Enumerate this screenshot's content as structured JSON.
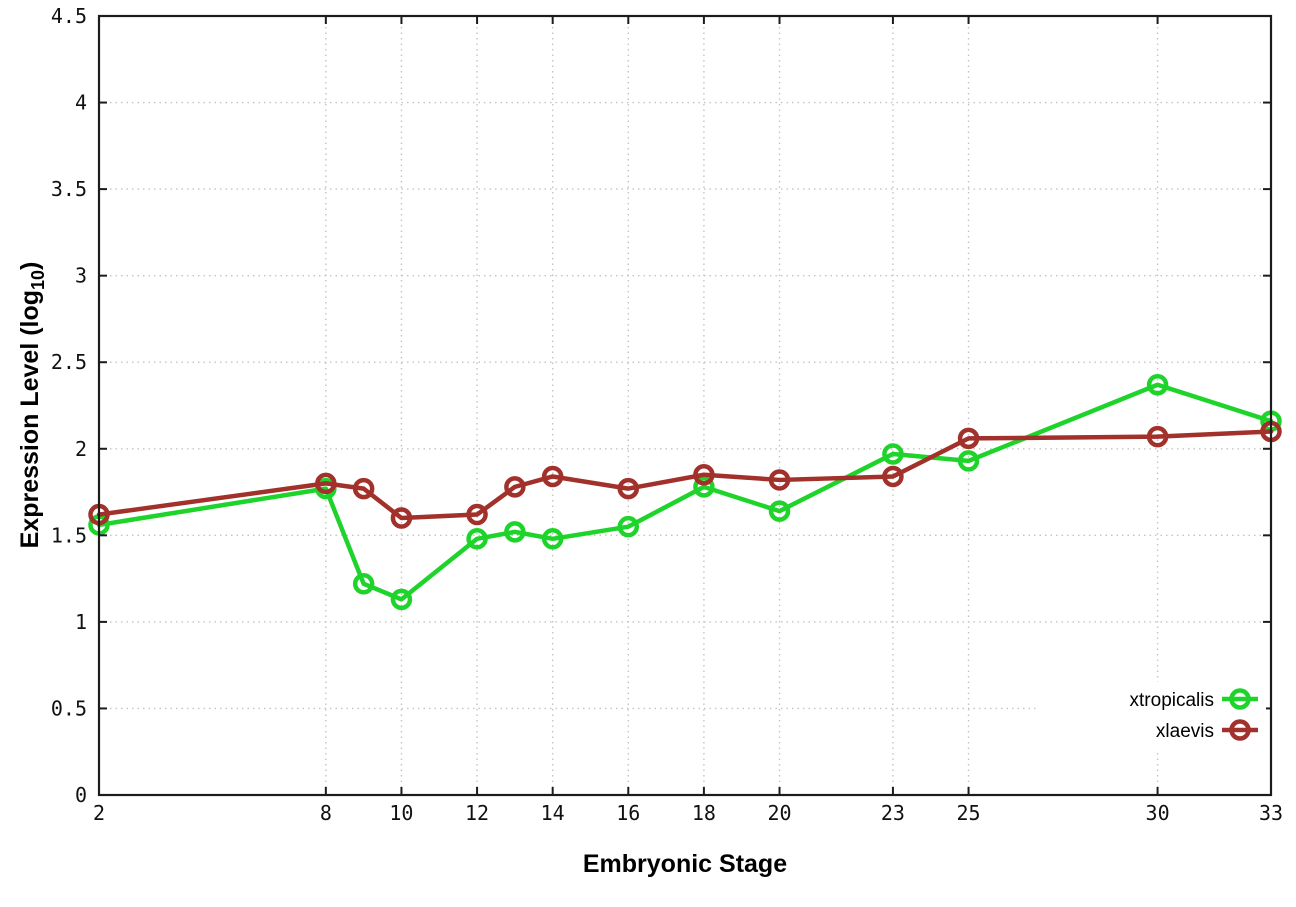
{
  "chart_data": {
    "type": "line",
    "x": [
      2,
      8,
      9,
      10,
      12,
      13,
      14,
      16,
      18,
      20,
      23,
      25,
      30,
      33
    ],
    "series": [
      {
        "name": "xtropicalis",
        "color": "#1ed42b",
        "values": [
          1.56,
          1.77,
          1.22,
          1.13,
          1.48,
          1.52,
          1.48,
          1.55,
          1.78,
          1.64,
          1.97,
          1.93,
          2.37,
          2.16
        ]
      },
      {
        "name": "xlaevis",
        "color": "#a1312a",
        "values": [
          1.62,
          1.8,
          1.77,
          1.6,
          1.62,
          1.78,
          1.84,
          1.77,
          1.85,
          1.82,
          1.84,
          2.06,
          2.07,
          2.1
        ]
      }
    ],
    "xlabel": "Embryonic Stage",
    "ylabel": "Expression Level (log10)",
    "ylabel_parts": {
      "main": "Expression Level (log",
      "sub": "10",
      "end": ")"
    },
    "x_ticks": [
      2,
      8,
      10,
      12,
      14,
      16,
      18,
      20,
      23,
      25,
      30,
      33
    ],
    "y_ticks": [
      0,
      0.5,
      1,
      1.5,
      2,
      2.5,
      3,
      3.5,
      4,
      4.5
    ],
    "xlim": [
      2,
      33
    ],
    "ylim": [
      0,
      4.5
    ],
    "grid": true,
    "legend_position": "inside-bottom-right",
    "background_color": "#ffffff",
    "marker_style": "open-circle",
    "line_width": 4.5
  }
}
